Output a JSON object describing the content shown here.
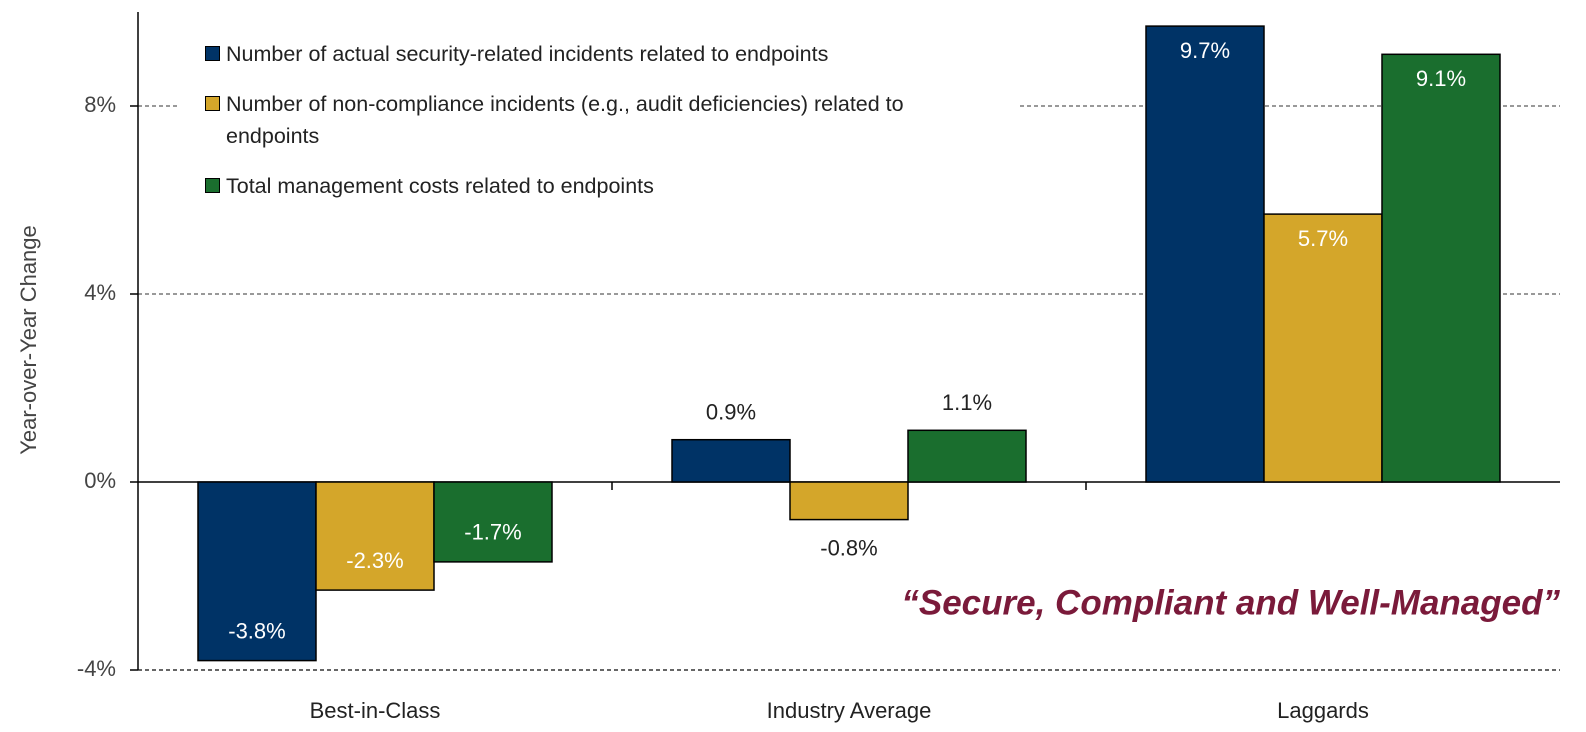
{
  "chart_data": {
    "type": "bar",
    "y_label": "Year-over-Year Change",
    "annotation": "“Secure, Compliant and Well-Managed”",
    "categories": [
      "Best-in-Class",
      "Industry Average",
      "Laggards"
    ],
    "series": [
      {
        "name": "Number of actual security-related incidents related to endpoints",
        "color": "#003366",
        "values": [
          -3.8,
          0.9,
          9.7
        ],
        "value_labels": [
          "-3.8%",
          "0.9%",
          "9.7%"
        ]
      },
      {
        "name": "Number of non-compliance incidents (e.g., audit deficiencies) related to endpoints",
        "color": "#d4a62a",
        "values": [
          -2.3,
          -0.8,
          5.7
        ],
        "value_labels": [
          "-2.3%",
          "-0.8%",
          "5.7%"
        ]
      },
      {
        "name": "Total management costs related to endpoints",
        "color": "#1a6e2e",
        "values": [
          -1.7,
          1.1,
          9.1
        ],
        "value_labels": [
          "-1.7%",
          "1.1%",
          "9.1%"
        ]
      }
    ],
    "ylim": [
      -4,
      10
    ],
    "yticks": [
      {
        "value": -4,
        "label": "-4%"
      },
      {
        "value": 0,
        "label": "0%"
      },
      {
        "value": 4,
        "label": "4%"
      },
      {
        "value": 8,
        "label": "8%"
      }
    ],
    "grid": true,
    "legend": "top-left"
  }
}
